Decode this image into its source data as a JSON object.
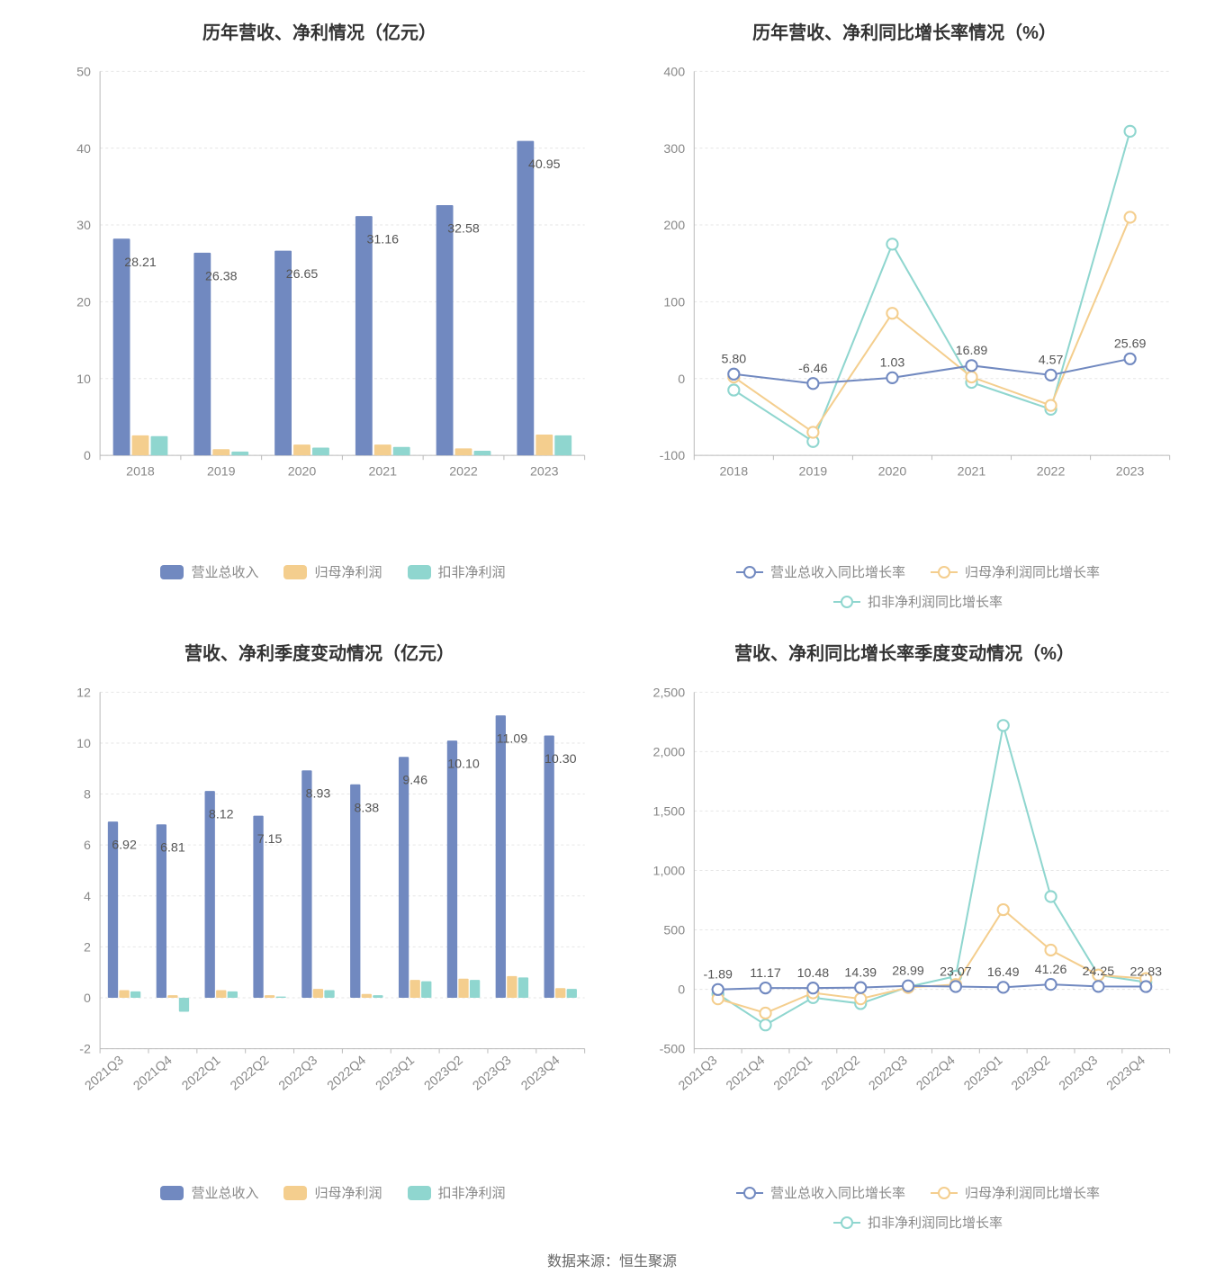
{
  "footer": "数据来源：恒生聚源",
  "colors": {
    "series1": "#7189c0",
    "series2": "#f4ce8e",
    "series3": "#8fd6cf",
    "axis": "#bbbbbb",
    "grid": "#e6e6e6",
    "text": "#888888",
    "title": "#333333",
    "background": "#ffffff",
    "value_label": "#555555"
  },
  "typography": {
    "title_fontsize": 20,
    "axis_fontsize": 14,
    "legend_fontsize": 15,
    "value_label_fontsize": 14
  },
  "chart1": {
    "type": "bar",
    "title": "历年营收、净利情况（亿元）",
    "categories": [
      "2018",
      "2019",
      "2020",
      "2021",
      "2022",
      "2023"
    ],
    "series": [
      {
        "name": "营业总收入",
        "color": "#7189c0",
        "values": [
          28.21,
          26.38,
          26.65,
          31.16,
          32.58,
          40.95
        ],
        "labelled": true
      },
      {
        "name": "归母净利润",
        "color": "#f4ce8e",
        "values": [
          2.6,
          0.8,
          1.4,
          1.4,
          0.9,
          2.7
        ],
        "labelled": false
      },
      {
        "name": "扣非净利润",
        "color": "#8fd6cf",
        "values": [
          2.5,
          0.5,
          1.0,
          1.1,
          0.6,
          2.6
        ],
        "labelled": false
      }
    ],
    "legend": [
      "营业总收入",
      "归母净利润",
      "扣非净利润"
    ],
    "ylim": [
      0,
      50
    ],
    "ytick_step": 10,
    "bar_group_width": 0.7,
    "bar_gap": 0.06,
    "grid_dashed": true
  },
  "chart2": {
    "type": "line",
    "title": "历年营收、净利同比增长率情况（%）",
    "categories": [
      "2018",
      "2019",
      "2020",
      "2021",
      "2022",
      "2023"
    ],
    "series": [
      {
        "name": "营业总收入同比增长率",
        "color": "#7189c0",
        "values": [
          5.8,
          -6.46,
          1.03,
          16.89,
          4.57,
          25.69
        ],
        "labelled": true
      },
      {
        "name": "归母净利润同比增长率",
        "color": "#f4ce8e",
        "values": [
          2,
          -70,
          85,
          2,
          -35,
          210
        ],
        "labelled": false
      },
      {
        "name": "扣非净利润同比增长率",
        "color": "#8fd6cf",
        "values": [
          -15,
          -82,
          175,
          -5,
          -40,
          322
        ],
        "labelled": false
      }
    ],
    "legend": [
      "营业总收入同比增长率",
      "归母净利润同比增长率",
      "扣非净利润同比增长率"
    ],
    "ylim": [
      -100,
      400
    ],
    "ytick_step": 100,
    "marker": "circle",
    "marker_size": 6,
    "line_width": 2,
    "grid_dashed": true
  },
  "chart3": {
    "type": "bar",
    "title": "营收、净利季度变动情况（亿元）",
    "categories": [
      "2021Q3",
      "2021Q4",
      "2022Q1",
      "2022Q2",
      "2022Q3",
      "2022Q4",
      "2023Q1",
      "2023Q2",
      "2023Q3",
      "2023Q4"
    ],
    "rot_xlabels": true,
    "series": [
      {
        "name": "营业总收入",
        "color": "#7189c0",
        "values": [
          6.92,
          6.81,
          8.12,
          7.15,
          8.93,
          8.38,
          9.46,
          10.1,
          11.09,
          10.3
        ],
        "labelled": true
      },
      {
        "name": "归母净利润",
        "color": "#f4ce8e",
        "values": [
          0.3,
          0.1,
          0.3,
          0.1,
          0.35,
          0.15,
          0.7,
          0.75,
          0.85,
          0.38
        ],
        "labelled": false
      },
      {
        "name": "扣非净利润",
        "color": "#8fd6cf",
        "values": [
          0.25,
          -0.55,
          0.25,
          0.05,
          0.3,
          0.1,
          0.65,
          0.7,
          0.8,
          0.35
        ],
        "labelled": false
      }
    ],
    "legend": [
      "营业总收入",
      "归母净利润",
      "扣非净利润"
    ],
    "ylim": [
      -2,
      12
    ],
    "ytick_step": 2,
    "bar_group_width": 0.7,
    "bar_gap": 0.04,
    "grid_dashed": true
  },
  "chart4": {
    "type": "line",
    "title": "营收、净利同比增长率季度变动情况（%）",
    "categories": [
      "2021Q3",
      "2021Q4",
      "2022Q1",
      "2022Q2",
      "2022Q3",
      "2022Q4",
      "2023Q1",
      "2023Q2",
      "2023Q3",
      "2023Q4"
    ],
    "rot_xlabels": true,
    "series": [
      {
        "name": "营业总收入同比增长率",
        "color": "#7189c0",
        "values": [
          -1.89,
          11.17,
          10.48,
          14.39,
          28.99,
          23.07,
          16.49,
          41.26,
          24.25,
          22.83
        ],
        "labelled": true
      },
      {
        "name": "归母净利润同比增长率",
        "color": "#f4ce8e",
        "values": [
          -80,
          -200,
          -30,
          -80,
          15,
          40,
          670,
          330,
          120,
          90
        ],
        "labelled": false
      },
      {
        "name": "扣非净利润同比增长率",
        "color": "#8fd6cf",
        "values": [
          -40,
          -300,
          -70,
          -120,
          20,
          110,
          2220,
          780,
          120,
          60
        ],
        "labelled": false
      }
    ],
    "legend": [
      "营业总收入同比增长率",
      "归母净利润同比增长率",
      "扣非净利润同比增长率"
    ],
    "ylim": [
      -500,
      2500
    ],
    "ytick_step": 500,
    "marker": "circle",
    "marker_size": 6,
    "line_width": 2,
    "grid_dashed": true
  }
}
